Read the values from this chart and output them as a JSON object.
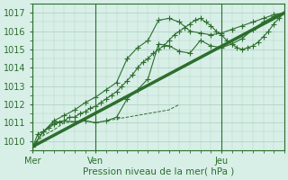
{
  "xlabel": "Pression niveau de la mer( hPa )",
  "ylim": [
    1009.5,
    1017.5
  ],
  "xlim": [
    0,
    96
  ],
  "yticks": [
    1010,
    1011,
    1012,
    1013,
    1014,
    1015,
    1016,
    1017
  ],
  "xtick_positions": [
    0,
    24,
    72
  ],
  "xtick_labels": [
    "Mer",
    "Ven",
    "Jeu"
  ],
  "bg_color": "#d8efe8",
  "grid_color": "#b0d4c0",
  "line_color": "#2d6e2d",
  "line1": [
    [
      0,
      1009.7
    ],
    [
      2,
      1010.4
    ],
    [
      4,
      1010.5
    ],
    [
      6,
      1010.7
    ],
    [
      8,
      1010.9
    ],
    [
      10,
      1011.0
    ],
    [
      12,
      1011.1
    ],
    [
      14,
      1011.3
    ],
    [
      16,
      1011.3
    ],
    [
      18,
      1011.5
    ],
    [
      20,
      1011.6
    ],
    [
      22,
      1011.8
    ],
    [
      24,
      1011.9
    ],
    [
      26,
      1012.1
    ],
    [
      28,
      1012.3
    ],
    [
      30,
      1012.5
    ],
    [
      32,
      1012.7
    ],
    [
      34,
      1013.0
    ],
    [
      36,
      1013.3
    ],
    [
      38,
      1013.6
    ],
    [
      40,
      1014.0
    ],
    [
      42,
      1014.3
    ],
    [
      44,
      1014.5
    ],
    [
      46,
      1014.8
    ],
    [
      48,
      1015.0
    ],
    [
      50,
      1015.2
    ],
    [
      52,
      1015.5
    ],
    [
      54,
      1015.8
    ],
    [
      56,
      1016.0
    ],
    [
      58,
      1016.2
    ],
    [
      60,
      1016.4
    ],
    [
      62,
      1016.6
    ],
    [
      64,
      1016.7
    ],
    [
      66,
      1016.5
    ],
    [
      68,
      1016.3
    ],
    [
      70,
      1016.0
    ],
    [
      72,
      1015.8
    ],
    [
      74,
      1015.5
    ],
    [
      76,
      1015.3
    ],
    [
      78,
      1015.1
    ],
    [
      80,
      1015.0
    ],
    [
      82,
      1015.1
    ],
    [
      84,
      1015.2
    ],
    [
      86,
      1015.4
    ],
    [
      88,
      1015.7
    ],
    [
      90,
      1016.0
    ],
    [
      92,
      1016.4
    ],
    [
      94,
      1016.7
    ],
    [
      96,
      1017.0
    ]
  ],
  "line2": [
    [
      0,
      1009.7
    ],
    [
      4,
      1010.5
    ],
    [
      8,
      1011.0
    ],
    [
      12,
      1011.1
    ],
    [
      16,
      1011.05
    ],
    [
      20,
      1011.1
    ],
    [
      24,
      1011.0
    ],
    [
      28,
      1011.1
    ],
    [
      32,
      1011.3
    ],
    [
      36,
      1012.3
    ],
    [
      40,
      1012.8
    ],
    [
      44,
      1013.4
    ],
    [
      48,
      1015.3
    ],
    [
      52,
      1015.2
    ],
    [
      56,
      1014.9
    ],
    [
      60,
      1014.8
    ],
    [
      64,
      1015.5
    ],
    [
      68,
      1015.2
    ],
    [
      72,
      1015.1
    ],
    [
      76,
      1015.3
    ],
    [
      80,
      1015.6
    ],
    [
      84,
      1016.1
    ],
    [
      88,
      1016.5
    ],
    [
      92,
      1016.8
    ],
    [
      96,
      1017.0
    ]
  ],
  "line3_dashed": [
    [
      0,
      1009.7
    ],
    [
      4,
      1010.3
    ],
    [
      8,
      1010.6
    ],
    [
      12,
      1011.0
    ],
    [
      16,
      1011.05
    ],
    [
      20,
      1011.1
    ],
    [
      24,
      1011.0
    ],
    [
      28,
      1011.1
    ],
    [
      32,
      1011.2
    ],
    [
      36,
      1011.3
    ],
    [
      40,
      1011.4
    ],
    [
      44,
      1011.5
    ],
    [
      48,
      1011.6
    ],
    [
      52,
      1011.7
    ],
    [
      56,
      1012.0
    ]
  ],
  "line4_thick": [
    [
      0,
      1009.7
    ],
    [
      96,
      1017.0
    ]
  ],
  "line5": [
    [
      0,
      1009.7
    ],
    [
      4,
      1010.5
    ],
    [
      8,
      1011.1
    ],
    [
      12,
      1011.4
    ],
    [
      16,
      1011.7
    ],
    [
      20,
      1012.1
    ],
    [
      24,
      1012.4
    ],
    [
      28,
      1012.8
    ],
    [
      32,
      1013.2
    ],
    [
      36,
      1014.5
    ],
    [
      40,
      1015.1
    ],
    [
      44,
      1015.5
    ],
    [
      48,
      1016.6
    ],
    [
      52,
      1016.7
    ],
    [
      56,
      1016.5
    ],
    [
      60,
      1016.0
    ],
    [
      64,
      1015.9
    ],
    [
      68,
      1015.8
    ],
    [
      72,
      1015.9
    ],
    [
      76,
      1016.1
    ],
    [
      80,
      1016.3
    ],
    [
      84,
      1016.5
    ],
    [
      88,
      1016.7
    ],
    [
      92,
      1016.9
    ],
    [
      96,
      1017.0
    ]
  ]
}
